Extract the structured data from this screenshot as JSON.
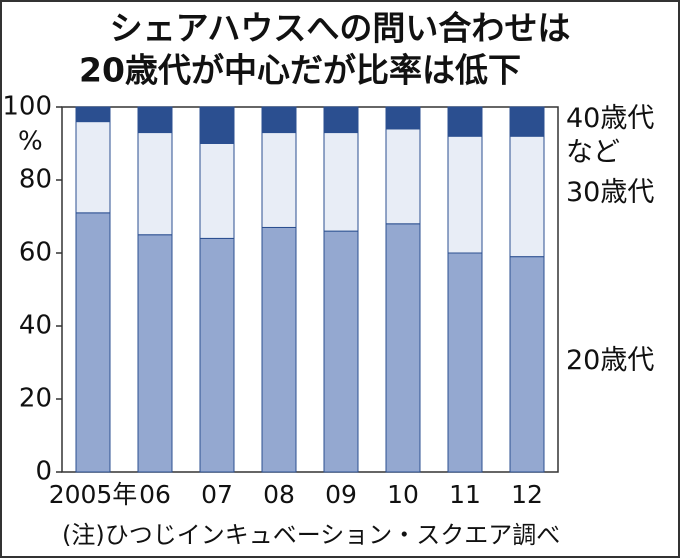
{
  "chart_data": {
    "type": "stacked_bar",
    "title": [
      "シェアハウスへの問い合わせは",
      "20歳代が中心だが比率は低下"
    ],
    "y_unit": "%",
    "note": "(注)ひつじインキュベーション・スクエア調べ",
    "categories": [
      "2005年",
      "06",
      "07",
      "08",
      "09",
      "10",
      "11",
      "12"
    ],
    "series": [
      {
        "name": "20歳代",
        "color": "#94a8d0",
        "values": [
          71,
          65,
          64,
          67,
          66,
          68,
          60,
          59
        ]
      },
      {
        "name": "30歳代",
        "color": "#e8edf6",
        "values": [
          25,
          28,
          26,
          26,
          27,
          26,
          32,
          33
        ]
      },
      {
        "name": "40歳代など",
        "color": "#2b4f90",
        "values": [
          4,
          7,
          10,
          7,
          7,
          6,
          8,
          8
        ]
      }
    ],
    "ylim": [
      0,
      100
    ],
    "yticks": [
      0,
      20,
      40,
      60,
      80,
      100
    ]
  }
}
